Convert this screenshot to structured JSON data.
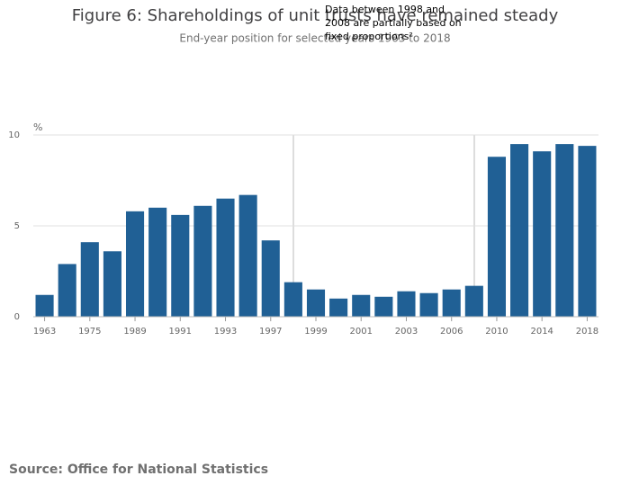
{
  "chart_data": {
    "type": "bar",
    "title": "Figure 6: Shareholdings of unit trusts have remained steady",
    "subtitle": "End-year position for selected years 1963 to 2018",
    "y_unit": "%",
    "annotation": [
      "Data between 1998 and",
      "2008 are partially based on",
      "fixed proportions²"
    ],
    "source": "Source: Office for National Statistics",
    "categories": [
      "1963",
      null,
      "1975",
      null,
      "1989",
      null,
      "1991",
      null,
      "1993",
      null,
      "1997",
      null,
      "1999",
      null,
      "2001",
      null,
      "2003",
      null,
      "2006",
      null,
      "2010",
      null,
      "2014",
      null,
      "2018"
    ],
    "values": [
      1.2,
      2.9,
      4.1,
      3.6,
      5.8,
      6.0,
      5.6,
      6.1,
      6.5,
      6.7,
      4.2,
      1.9,
      1.5,
      1.0,
      1.2,
      1.1,
      1.4,
      1.3,
      1.5,
      1.7,
      8.8,
      9.5,
      9.1,
      9.5,
      9.4
    ],
    "color": "#206095",
    "ylim": [
      0,
      10
    ],
    "yticks": [
      0,
      5,
      10
    ],
    "grid": true
  }
}
